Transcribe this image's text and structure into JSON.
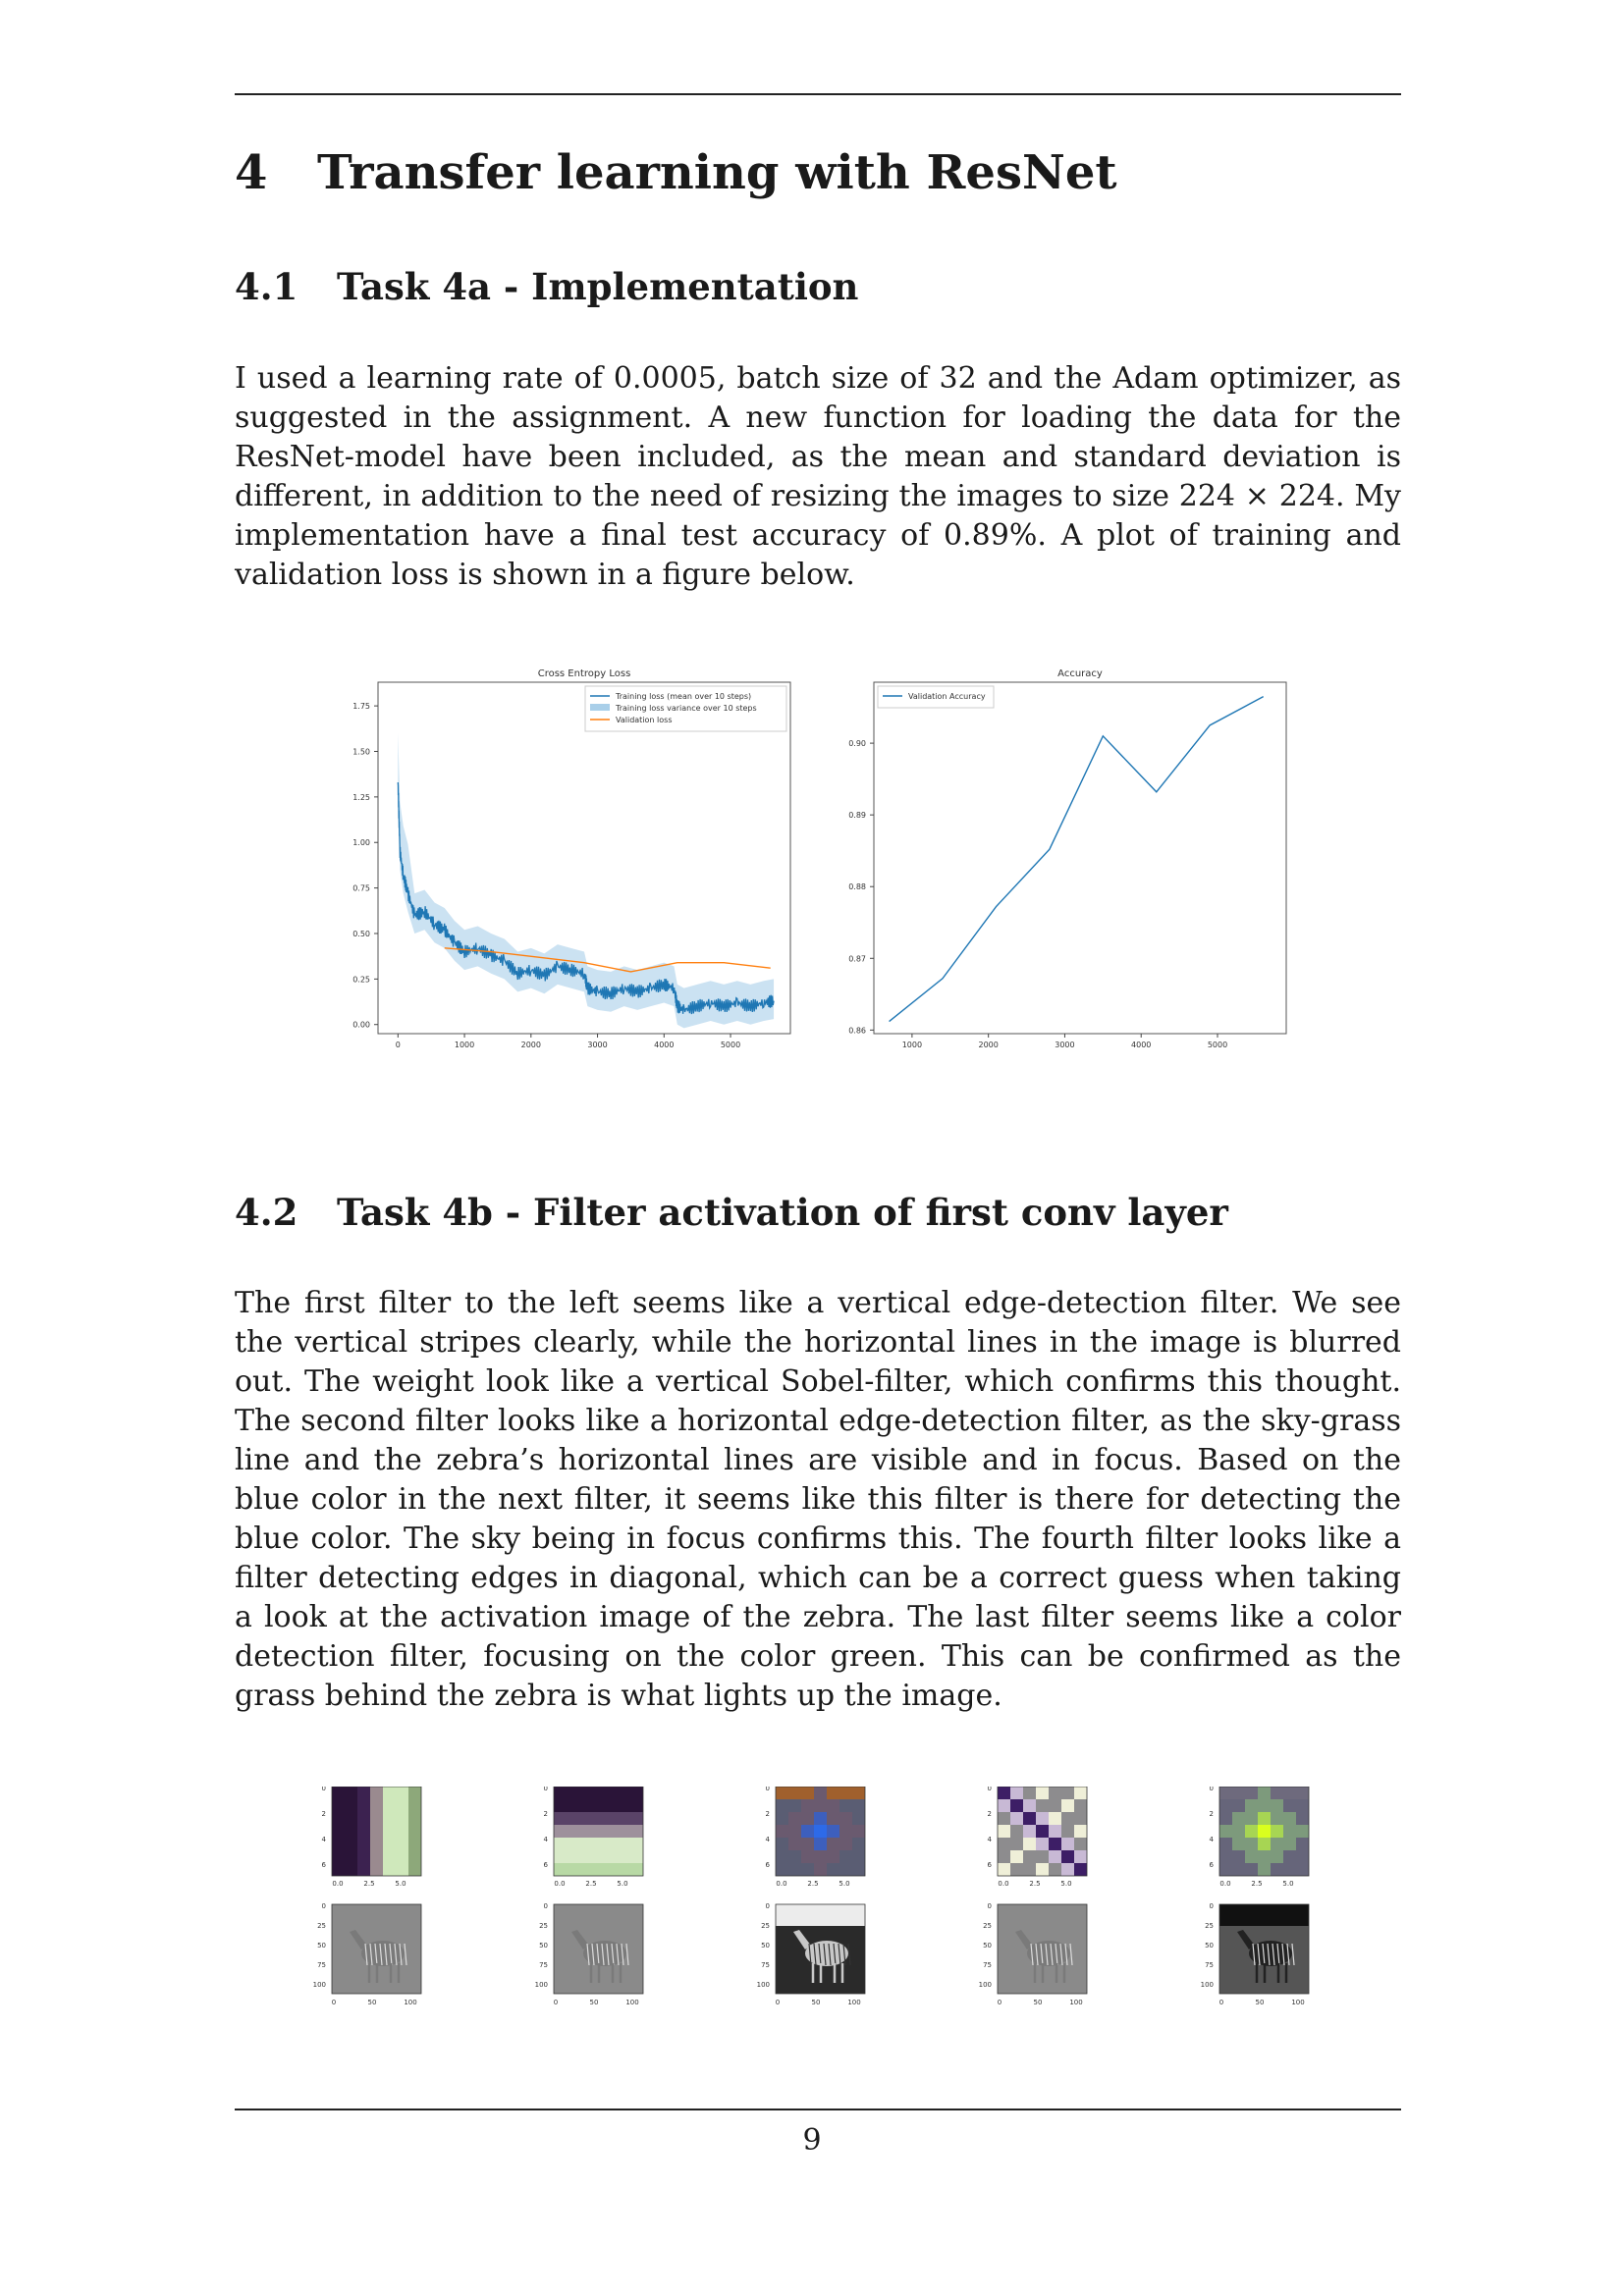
{
  "section": {
    "number": "4",
    "title": "Transfer learning with ResNet"
  },
  "sub1": {
    "number": "4.1",
    "title": "Task 4a - Implementation",
    "paragraph": "I used a learning rate of 0.0005, batch size of 32 and the Adam optimizer, as suggested in the assignment. A new function for loading the data for the ResNet-model have been included, as the mean and standard deviation is different, in addition to the need of resizing the images to size 224 × 224. My implementation have a final test accuracy of 0.89%. A plot of training and validation loss is shown in a figure below."
  },
  "chart_data": [
    {
      "type": "line",
      "title": "Cross Entropy Loss",
      "xlabel": "",
      "ylabel": "",
      "xlim": [
        -300,
        5900
      ],
      "ylim": [
        -0.05,
        1.88
      ],
      "xticks": [
        0,
        1000,
        2000,
        3000,
        4000,
        5000
      ],
      "yticks": [
        0.0,
        0.25,
        0.5,
        0.75,
        1.0,
        1.25,
        1.5,
        1.75
      ],
      "xtick_labels": [
        "0",
        "1000",
        "2000",
        "3000",
        "4000",
        "5000"
      ],
      "ytick_labels": [
        "0.00",
        "0.25",
        "0.50",
        "0.75",
        "1.00",
        "1.25",
        "1.50",
        "1.75"
      ],
      "legend": "top-right",
      "legend_labels": [
        "Training loss (mean over 10 steps)",
        "Training loss variance over 10 steps",
        "Validation loss"
      ],
      "series": [
        {
          "name": "Training loss (mean over 10 steps)",
          "color": "#1f77b4",
          "x": [
            0,
            30,
            80,
            150,
            250,
            400,
            550,
            700,
            850,
            1000,
            1200,
            1400,
            1600,
            1800,
            2000,
            2200,
            2400,
            2600,
            2800,
            2850,
            3000,
            3200,
            3400,
            3600,
            3800,
            4000,
            4150,
            4200,
            4300,
            4500,
            4700,
            4900,
            5100,
            5300,
            5500,
            5650
          ],
          "y": [
            1.33,
            0.95,
            0.82,
            0.72,
            0.6,
            0.62,
            0.55,
            0.52,
            0.45,
            0.4,
            0.42,
            0.38,
            0.35,
            0.28,
            0.3,
            0.27,
            0.32,
            0.3,
            0.28,
            0.2,
            0.18,
            0.17,
            0.2,
            0.18,
            0.2,
            0.22,
            0.2,
            0.1,
            0.08,
            0.1,
            0.12,
            0.1,
            0.12,
            0.1,
            0.12,
            0.13
          ]
        },
        {
          "name": "Validation loss",
          "color": "#ff7f0e",
          "x": [
            700,
            1400,
            2100,
            2800,
            3500,
            4200,
            4900,
            5600
          ],
          "y": [
            0.42,
            0.4,
            0.37,
            0.34,
            0.29,
            0.34,
            0.34,
            0.31
          ]
        }
      ]
    },
    {
      "type": "line",
      "title": "Accuracy",
      "xlabel": "",
      "ylabel": "",
      "xlim": [
        500,
        5900
      ],
      "ylim": [
        0.8595,
        0.9085
      ],
      "xticks": [
        1000,
        2000,
        3000,
        4000,
        5000
      ],
      "yticks": [
        0.86,
        0.87,
        0.88,
        0.89,
        0.9
      ],
      "xtick_labels": [
        "1000",
        "2000",
        "3000",
        "4000",
        "5000"
      ],
      "ytick_labels": [
        "0.86",
        "0.87",
        "0.88",
        "0.89",
        "0.90"
      ],
      "legend": "top-left",
      "legend_labels": [
        "Validation Accuracy"
      ],
      "series": [
        {
          "name": "Validation Accuracy",
          "color": "#1f77b4",
          "x": [
            700,
            1400,
            2100,
            2800,
            3500,
            4200,
            4900,
            5600
          ],
          "y": [
            0.8612,
            0.8672,
            0.8772,
            0.8852,
            0.901,
            0.8932,
            0.9025,
            0.9065
          ]
        }
      ]
    }
  ],
  "sub2": {
    "number": "4.2",
    "title": "Task 4b - Filter activation of first conv layer",
    "paragraph": "The first filter to the left seems like a vertical edge-detection filter. We see the vertical stripes clearly, while the horizontal lines in the image is blurred out. The weight look like a vertical Sobel-filter, which confirms this thought. The second filter looks like a horizontal edge-detection filter, as the sky-grass line and the zebra’s horizontal lines are visible and in focus. Based on the blue color in the next filter, it seems like this filter is there for detecting the blue color. The sky being in focus confirms this. The fourth filter looks like a filter detecting edges in diagonal, which can be a correct guess when taking a look at the activation image of the zebra. The last filter seems like a color detection filter, focusing on the color green. This can be confirmed as the grass behind the zebra is what lights up the image."
  },
  "filters": {
    "weight_yticks": [
      "0",
      "2",
      "4",
      "6"
    ],
    "weight_xticks": [
      "0.0",
      "2.5",
      "5.0"
    ],
    "activation_yticks": [
      "0",
      "25",
      "50",
      "75",
      "100"
    ],
    "activation_xticks": [
      "0",
      "50",
      "100"
    ],
    "items": [
      {
        "id": "vertical-edge",
        "palette": [
          "#2a1438",
          "#3c2250",
          "#9a8a8f",
          "#cfe8bb",
          "#c6f2b8",
          "#8da87a"
        ]
      },
      {
        "id": "horizontal-edge",
        "palette": [
          "#2a1438",
          "#5a4368",
          "#9e909c",
          "#d8eac8",
          "#cdeab9",
          "#b8d9a5"
        ]
      },
      {
        "id": "blue-color",
        "palette": [
          "#a0602d",
          "#6a5a6f",
          "#3d5fbd",
          "#2d6ae8",
          "#2458d8",
          "#5a5d73"
        ]
      },
      {
        "id": "diagonal-edge",
        "palette": [
          "#8d8c8e",
          "#c8b9d5",
          "#3d1e66",
          "#efefd8",
          "#b9b4c1",
          "#a4a39d"
        ]
      },
      {
        "id": "green-color",
        "palette": [
          "#6e6a7d",
          "#7d9a7c",
          "#a7d553",
          "#d9ff1f",
          "#8fae73",
          "#66657a"
        ]
      }
    ]
  },
  "page": {
    "number": "9"
  }
}
